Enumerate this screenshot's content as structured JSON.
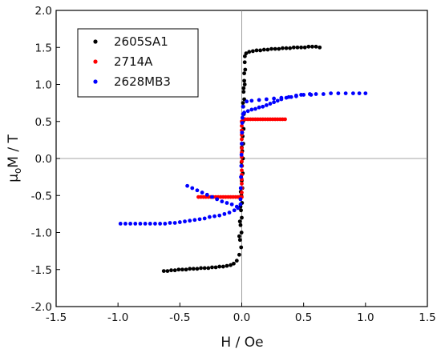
{
  "chart_data": {
    "type": "scatter",
    "title": "",
    "xlabel": "H / Oe",
    "ylabel": {
      "main": "μ",
      "sub": "o",
      "rest": "M / T"
    },
    "xlim": [
      -1.5,
      1.5
    ],
    "ylim": [
      -2.0,
      2.0
    ],
    "x_ticks": [
      -1.5,
      -1.0,
      -0.5,
      0.0,
      0.5,
      1.0,
      1.5
    ],
    "x_tick_labels": [
      "-1.5",
      "-1.0",
      "-0.5",
      "0.0",
      "0.5",
      "1.0",
      "1.5"
    ],
    "y_ticks": [
      -2.0,
      -1.5,
      -1.0,
      -0.5,
      0.0,
      0.5,
      1.0,
      1.5,
      2.0
    ],
    "y_tick_labels": [
      "-2.0",
      "-1.5",
      "-1.0",
      "-0.5",
      "0.0",
      "0.5",
      "1.0",
      "1.5",
      "2.0"
    ],
    "grid": false,
    "zero_lines": true,
    "legend_position": "top-left",
    "series": [
      {
        "name": "2605SA1",
        "color": "#000000",
        "points": [
          [
            -0.63,
            -1.52
          ],
          [
            -0.6,
            -1.52
          ],
          [
            -0.57,
            -1.51
          ],
          [
            -0.54,
            -1.51
          ],
          [
            -0.51,
            -1.5
          ],
          [
            -0.48,
            -1.5
          ],
          [
            -0.45,
            -1.5
          ],
          [
            -0.42,
            -1.49
          ],
          [
            -0.39,
            -1.49
          ],
          [
            -0.36,
            -1.49
          ],
          [
            -0.33,
            -1.48
          ],
          [
            -0.3,
            -1.48
          ],
          [
            -0.27,
            -1.48
          ],
          [
            -0.24,
            -1.47
          ],
          [
            -0.21,
            -1.47
          ],
          [
            -0.18,
            -1.46
          ],
          [
            -0.15,
            -1.46
          ],
          [
            -0.12,
            -1.45
          ],
          [
            -0.09,
            -1.44
          ],
          [
            -0.065,
            -1.42
          ],
          [
            -0.04,
            -1.38
          ],
          [
            -0.02,
            -1.3
          ],
          [
            -0.005,
            -1.2
          ],
          [
            -0.002,
            -1.0
          ],
          [
            0.0,
            -0.8
          ],
          [
            0.002,
            -0.6
          ],
          [
            0.005,
            -0.4
          ],
          [
            0.008,
            -0.2
          ],
          [
            0.01,
            0.0
          ],
          [
            0.012,
            0.2
          ],
          [
            0.015,
            0.4
          ],
          [
            0.017,
            0.6
          ],
          [
            0.02,
            0.8
          ],
          [
            0.024,
            1.0
          ],
          [
            0.028,
            1.2
          ],
          [
            -0.02,
            -1.05
          ],
          [
            -0.015,
            -0.85
          ],
          [
            -0.01,
            -0.65
          ],
          [
            -0.008,
            -0.45
          ],
          [
            -0.005,
            -0.25
          ],
          [
            -0.002,
            -0.05
          ],
          [
            0.0,
            0.15
          ],
          [
            0.003,
            0.35
          ],
          [
            0.006,
            0.55
          ],
          [
            0.01,
            0.75
          ],
          [
            0.015,
            0.95
          ],
          [
            0.02,
            1.15
          ],
          [
            0.024,
            1.3
          ],
          [
            0.02,
            1.05
          ],
          [
            0.015,
            0.9
          ],
          [
            0.012,
            0.7
          ],
          [
            0.01,
            0.5
          ],
          [
            0.007,
            0.3
          ],
          [
            0.004,
            0.1
          ],
          [
            0.002,
            -0.1
          ],
          [
            0.0,
            -0.3
          ],
          [
            -0.003,
            -0.5
          ],
          [
            -0.006,
            -0.7
          ],
          [
            -0.01,
            -0.9
          ],
          [
            -0.014,
            -1.1
          ],
          [
            0.025,
            1.38
          ],
          [
            0.035,
            1.42
          ],
          [
            0.06,
            1.44
          ],
          [
            0.09,
            1.45
          ],
          [
            0.12,
            1.46
          ],
          [
            0.15,
            1.46
          ],
          [
            0.18,
            1.47
          ],
          [
            0.21,
            1.47
          ],
          [
            0.24,
            1.48
          ],
          [
            0.27,
            1.48
          ],
          [
            0.3,
            1.48
          ],
          [
            0.33,
            1.49
          ],
          [
            0.36,
            1.49
          ],
          [
            0.39,
            1.49
          ],
          [
            0.42,
            1.5
          ],
          [
            0.45,
            1.5
          ],
          [
            0.48,
            1.5
          ],
          [
            0.51,
            1.5
          ],
          [
            0.54,
            1.51
          ],
          [
            0.57,
            1.51
          ],
          [
            0.6,
            1.51
          ],
          [
            0.63,
            1.5
          ]
        ]
      },
      {
        "name": "2714A",
        "color": "#ff0000",
        "points": [
          [
            -0.35,
            -0.52
          ],
          [
            -0.33,
            -0.52
          ],
          [
            -0.31,
            -0.52
          ],
          [
            -0.29,
            -0.52
          ],
          [
            -0.27,
            -0.52
          ],
          [
            -0.25,
            -0.52
          ],
          [
            -0.23,
            -0.52
          ],
          [
            -0.21,
            -0.52
          ],
          [
            -0.19,
            -0.52
          ],
          [
            -0.17,
            -0.52
          ],
          [
            -0.15,
            -0.52
          ],
          [
            -0.13,
            -0.52
          ],
          [
            -0.11,
            -0.52
          ],
          [
            -0.09,
            -0.52
          ],
          [
            -0.07,
            -0.52
          ],
          [
            -0.05,
            -0.52
          ],
          [
            -0.03,
            -0.52
          ],
          [
            -0.01,
            -0.52
          ],
          [
            0.0,
            -0.52
          ],
          [
            0.0,
            -0.46
          ],
          [
            0.0,
            -0.4
          ],
          [
            0.0,
            -0.34
          ],
          [
            0.0,
            -0.28
          ],
          [
            0.0,
            -0.22
          ],
          [
            0.0,
            -0.16
          ],
          [
            0.0,
            -0.1
          ],
          [
            0.0,
            -0.04
          ],
          [
            0.0,
            0.02
          ],
          [
            0.0,
            0.08
          ],
          [
            0.0,
            0.14
          ],
          [
            0.0,
            0.2
          ],
          [
            0.0,
            0.26
          ],
          [
            0.0,
            0.32
          ],
          [
            0.0,
            0.38
          ],
          [
            0.0,
            0.44
          ],
          [
            0.0,
            0.5
          ],
          [
            0.01,
            0.53
          ],
          [
            0.03,
            0.53
          ],
          [
            0.05,
            0.53
          ],
          [
            0.07,
            0.53
          ],
          [
            0.09,
            0.53
          ],
          [
            0.11,
            0.53
          ],
          [
            0.13,
            0.53
          ],
          [
            0.15,
            0.53
          ],
          [
            0.17,
            0.53
          ],
          [
            0.19,
            0.53
          ],
          [
            0.21,
            0.53
          ],
          [
            0.23,
            0.53
          ],
          [
            0.25,
            0.53
          ],
          [
            0.27,
            0.53
          ],
          [
            0.29,
            0.53
          ],
          [
            0.31,
            0.53
          ],
          [
            0.33,
            0.53
          ],
          [
            0.35,
            0.53
          ]
        ]
      },
      {
        "name": "2628MB3",
        "color": "#0000ff",
        "points": [
          [
            -0.98,
            -0.88
          ],
          [
            -0.94,
            -0.88
          ],
          [
            -0.9,
            -0.88
          ],
          [
            -0.86,
            -0.88
          ],
          [
            -0.82,
            -0.88
          ],
          [
            -0.78,
            -0.88
          ],
          [
            -0.74,
            -0.88
          ],
          [
            -0.7,
            -0.88
          ],
          [
            -0.66,
            -0.88
          ],
          [
            -0.62,
            -0.88
          ],
          [
            -0.58,
            -0.87
          ],
          [
            -0.54,
            -0.87
          ],
          [
            -0.5,
            -0.86
          ],
          [
            -0.46,
            -0.85
          ],
          [
            -0.42,
            -0.84
          ],
          [
            -0.38,
            -0.83
          ],
          [
            -0.34,
            -0.82
          ],
          [
            -0.3,
            -0.81
          ],
          [
            -0.26,
            -0.79
          ],
          [
            -0.22,
            -0.78
          ],
          [
            -0.18,
            -0.77
          ],
          [
            -0.14,
            -0.75
          ],
          [
            -0.1,
            -0.73
          ],
          [
            -0.06,
            -0.7
          ],
          [
            -0.03,
            -0.67
          ],
          [
            -0.01,
            -0.62
          ],
          [
            -0.01,
            -0.55
          ],
          [
            -0.008,
            -0.4
          ],
          [
            -0.006,
            -0.25
          ],
          [
            -0.004,
            -0.1
          ],
          [
            -0.002,
            0.05
          ],
          [
            0.0,
            0.2
          ],
          [
            0.002,
            0.35
          ],
          [
            0.004,
            0.48
          ],
          [
            0.006,
            0.55
          ],
          [
            0.01,
            0.6
          ],
          [
            0.02,
            0.62
          ],
          [
            0.05,
            0.64
          ],
          [
            0.08,
            0.66
          ],
          [
            0.11,
            0.67
          ],
          [
            0.14,
            0.69
          ],
          [
            0.17,
            0.7
          ],
          [
            0.2,
            0.72
          ],
          [
            0.23,
            0.74
          ],
          [
            0.26,
            0.76
          ],
          [
            0.29,
            0.78
          ],
          [
            0.32,
            0.8
          ],
          [
            0.36,
            0.82
          ],
          [
            0.4,
            0.83
          ],
          [
            0.44,
            0.85
          ],
          [
            0.48,
            0.86
          ],
          [
            0.55,
            0.87
          ],
          [
            0.6,
            0.87
          ],
          [
            0.66,
            0.87
          ],
          [
            0.72,
            0.88
          ],
          [
            0.78,
            0.88
          ],
          [
            0.84,
            0.88
          ],
          [
            0.9,
            0.88
          ],
          [
            0.95,
            0.88
          ],
          [
            1.0,
            0.88
          ],
          [
            0.56,
            0.86
          ],
          [
            0.5,
            0.86
          ],
          [
            0.44,
            0.84
          ],
          [
            0.38,
            0.83
          ],
          [
            0.32,
            0.82
          ],
          [
            0.26,
            0.81
          ],
          [
            0.2,
            0.8
          ],
          [
            0.14,
            0.79
          ],
          [
            0.08,
            0.78
          ],
          [
            0.04,
            0.77
          ],
          [
            0.01,
            0.7
          ],
          [
            -0.04,
            -0.65
          ],
          [
            -0.08,
            -0.62
          ],
          [
            -0.12,
            -0.6
          ],
          [
            -0.16,
            -0.58
          ],
          [
            -0.2,
            -0.55
          ],
          [
            -0.24,
            -0.52
          ],
          [
            -0.28,
            -0.49
          ],
          [
            -0.32,
            -0.46
          ],
          [
            -0.36,
            -0.43
          ],
          [
            -0.4,
            -0.4
          ],
          [
            -0.44,
            -0.37
          ]
        ]
      }
    ]
  }
}
